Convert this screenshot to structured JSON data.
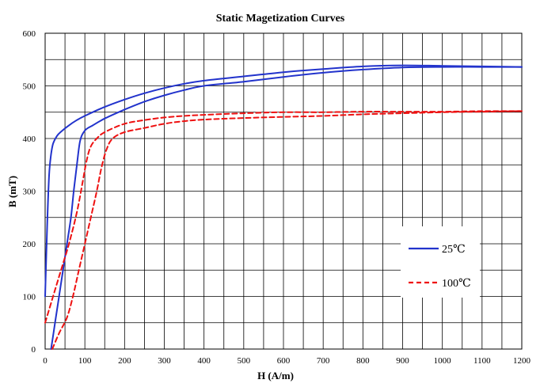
{
  "chart_data": {
    "type": "line",
    "title": "Static Magetization Curves",
    "xlabel": "H (A/m)",
    "ylabel": "B (mT)",
    "xlim": [
      0,
      1200
    ],
    "ylim": [
      0,
      600
    ],
    "xticks": [
      0,
      50,
      100,
      150,
      200,
      250,
      300,
      350,
      400,
      450,
      500,
      550,
      600,
      650,
      700,
      750,
      800,
      850,
      900,
      950,
      1000,
      1050,
      1100,
      1150,
      1200
    ],
    "xtick_labels": [
      "0",
      "100",
      "200",
      "300",
      "400",
      "500",
      "600",
      "700",
      "800",
      "900",
      "1000",
      "1100",
      "1200"
    ],
    "xtick_label_values": [
      0,
      100,
      200,
      300,
      400,
      500,
      600,
      700,
      800,
      900,
      1000,
      1100,
      1200
    ],
    "yticks": [
      0,
      50,
      100,
      150,
      200,
      250,
      300,
      350,
      400,
      450,
      500,
      550,
      600
    ],
    "ytick_labels": [
      "0",
      "100",
      "200",
      "300",
      "400",
      "500",
      "600"
    ],
    "ytick_label_values": [
      0,
      100,
      200,
      300,
      400,
      500,
      600
    ],
    "grid": true,
    "legend_position": "right",
    "series": [
      {
        "name": "25℃",
        "color": "#2233cc",
        "style": "solid",
        "upper_branch": [
          [
            0,
            100
          ],
          [
            5,
            230
          ],
          [
            10,
            330
          ],
          [
            15,
            370
          ],
          [
            20,
            390
          ],
          [
            30,
            405
          ],
          [
            40,
            413
          ],
          [
            60,
            425
          ],
          [
            80,
            435
          ],
          [
            100,
            443
          ],
          [
            150,
            460
          ],
          [
            200,
            474
          ],
          [
            250,
            486
          ],
          [
            300,
            496
          ],
          [
            350,
            504
          ],
          [
            400,
            510
          ],
          [
            500,
            518
          ],
          [
            600,
            526
          ],
          [
            700,
            532
          ],
          [
            800,
            537
          ],
          [
            900,
            539
          ],
          [
            1000,
            538
          ],
          [
            1100,
            537
          ],
          [
            1200,
            536
          ]
        ],
        "lower_branch": [
          [
            15,
            0
          ],
          [
            25,
            50
          ],
          [
            35,
            100
          ],
          [
            45,
            150
          ],
          [
            55,
            200
          ],
          [
            65,
            250
          ],
          [
            72,
            300
          ],
          [
            80,
            350
          ],
          [
            88,
            395
          ],
          [
            100,
            415
          ],
          [
            120,
            425
          ],
          [
            150,
            438
          ],
          [
            200,
            455
          ],
          [
            250,
            470
          ],
          [
            300,
            482
          ],
          [
            350,
            492
          ],
          [
            400,
            500
          ],
          [
            500,
            508
          ],
          [
            600,
            517
          ],
          [
            700,
            525
          ],
          [
            800,
            531
          ],
          [
            900,
            535
          ],
          [
            1000,
            536
          ],
          [
            1100,
            536
          ],
          [
            1200,
            536
          ]
        ]
      },
      {
        "name": "100℃",
        "color": "#ee1111",
        "style": "dashed",
        "upper_branch": [
          [
            0,
            50
          ],
          [
            20,
            100
          ],
          [
            40,
            150
          ],
          [
            60,
            200
          ],
          [
            80,
            260
          ],
          [
            95,
            320
          ],
          [
            105,
            360
          ],
          [
            115,
            385
          ],
          [
            130,
            400
          ],
          [
            150,
            412
          ],
          [
            200,
            428
          ],
          [
            250,
            435
          ],
          [
            300,
            440
          ],
          [
            350,
            443
          ],
          [
            400,
            445
          ],
          [
            500,
            448
          ],
          [
            600,
            450
          ],
          [
            700,
            450
          ],
          [
            800,
            451
          ],
          [
            900,
            451
          ],
          [
            1000,
            451
          ],
          [
            1100,
            452
          ],
          [
            1200,
            452
          ]
        ],
        "lower_branch": [
          [
            18,
            0
          ],
          [
            35,
            30
          ],
          [
            55,
            60
          ],
          [
            70,
            100
          ],
          [
            85,
            150
          ],
          [
            100,
            200
          ],
          [
            115,
            250
          ],
          [
            130,
            300
          ],
          [
            142,
            345
          ],
          [
            155,
            380
          ],
          [
            170,
            400
          ],
          [
            200,
            412
          ],
          [
            250,
            420
          ],
          [
            300,
            428
          ],
          [
            350,
            433
          ],
          [
            400,
            436
          ],
          [
            500,
            439
          ],
          [
            600,
            441
          ],
          [
            700,
            443
          ],
          [
            800,
            446
          ],
          [
            900,
            448
          ],
          [
            1000,
            450
          ],
          [
            1100,
            451
          ],
          [
            1200,
            452
          ]
        ]
      }
    ]
  }
}
